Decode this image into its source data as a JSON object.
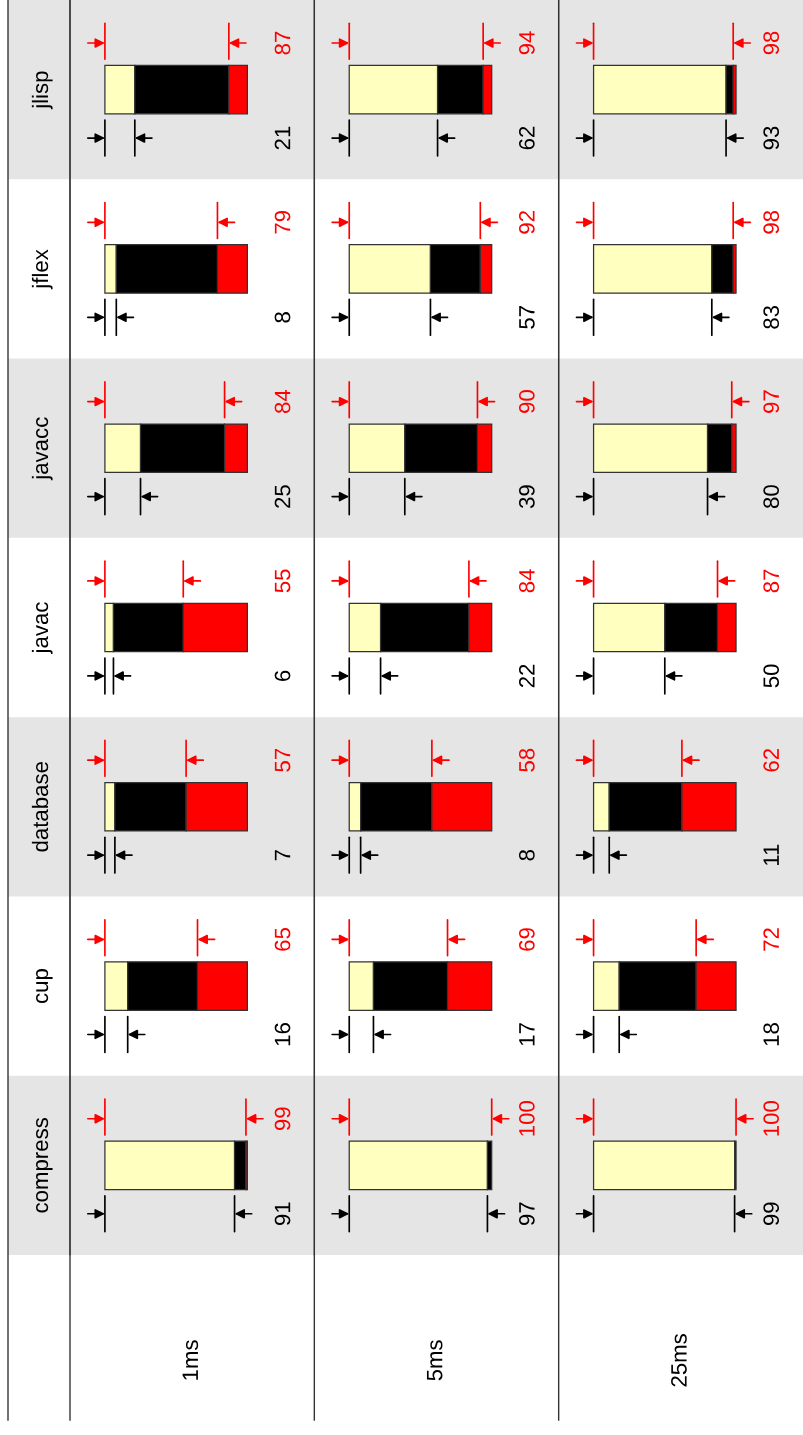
{
  "chart_data": [
    {
      "type": "bar",
      "orientation": "horizontal",
      "stacked": true,
      "title": "1ms",
      "tick_labels": "y",
      "legend": false,
      "grid": false,
      "categories": [
        "jlisp",
        "jflex",
        "javacc",
        "javac",
        "database",
        "cup",
        "compress"
      ],
      "series": [
        {
          "color": "#ffffc0",
          "values": [
            21,
            8,
            25,
            6,
            7,
            16,
            91
          ],
          "value_labels": [
            "21",
            "8",
            "25",
            "6",
            "7",
            "16",
            "91"
          ]
        },
        {
          "color": "#000000",
          "values": [
            66,
            71,
            59,
            49,
            50,
            49,
            8
          ]
        },
        {
          "color": "#ff0000",
          "values": [
            13,
            21,
            16,
            45,
            43,
            35,
            1
          ]
        }
      ],
      "annotations": [
        "87",
        "79",
        "84",
        "55",
        "57",
        "65",
        "99"
      ]
    },
    {
      "type": "bar",
      "orientation": "horizontal",
      "stacked": true,
      "title": "5ms",
      "tick_labels": false,
      "legend": false,
      "grid": false,
      "categories": [
        "jlisp",
        "jflex",
        "javacc",
        "javac",
        "database",
        "cup",
        "compress"
      ],
      "series": [
        {
          "color": "#ffffc0",
          "values": [
            62,
            57,
            39,
            22,
            8,
            17,
            97
          ],
          "value_labels": [
            "62",
            "57",
            "39",
            "22",
            "8",
            "17",
            "97"
          ]
        },
        {
          "color": "#000000",
          "values": [
            32,
            35,
            51,
            62,
            50,
            52,
            3
          ]
        },
        {
          "color": "#ff0000",
          "values": [
            6,
            8,
            10,
            16,
            42,
            31,
            0
          ]
        }
      ],
      "annotations": [
        "94",
        "92",
        "90",
        "84",
        "58",
        "69",
        "100"
      ]
    },
    {
      "type": "bar",
      "orientation": "horizontal",
      "stacked": true,
      "title": "25ms",
      "tick_labels": false,
      "legend": false,
      "grid": false,
      "categories": [
        "jlisp",
        "jflex",
        "javacc",
        "javac",
        "database",
        "cup",
        "compress"
      ],
      "series": [
        {
          "color": "#ffffc0",
          "values": [
            93,
            83,
            80,
            50,
            11,
            18,
            99
          ],
          "value_labels": [
            "93",
            "83",
            "80",
            "50",
            "11",
            "18",
            "99"
          ]
        },
        {
          "color": "#000000",
          "values": [
            5,
            15,
            17,
            37,
            51,
            54,
            1
          ]
        },
        {
          "color": "#ff0000",
          "values": [
            2,
            2,
            3,
            13,
            38,
            28,
            0
          ]
        }
      ],
      "annotations": [
        "98",
        "98",
        "97",
        "87",
        "62",
        "72",
        "100"
      ]
    }
  ]
}
